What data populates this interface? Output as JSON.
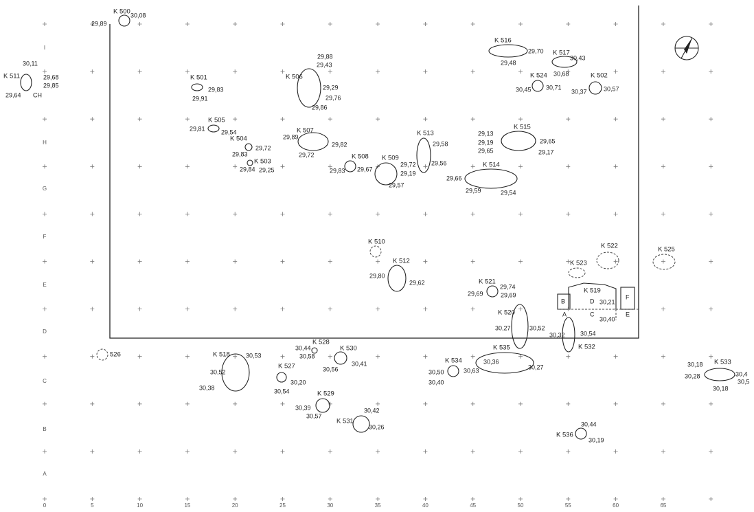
{
  "site_plan": {
    "features": [
      {
        "label": "K 500",
        "elevations": [
          "29,89",
          "30,08"
        ]
      },
      {
        "label": "K 501",
        "elevations": [
          "29,83",
          "29,91"
        ]
      },
      {
        "label": "K 506",
        "elevations": [
          "29,88",
          "29,43",
          "29,29",
          "29,76",
          "29,86"
        ]
      },
      {
        "label": "K 505",
        "elevations": [
          "29,81",
          "29,54"
        ]
      },
      {
        "label": "K 504",
        "elevations": [
          "29,72",
          "29,83"
        ]
      },
      {
        "label": "K 503",
        "elevations": [
          "29,84",
          "29,25"
        ]
      },
      {
        "label": "K 507",
        "elevations": [
          "29,89",
          "29,82",
          "29,72"
        ]
      },
      {
        "label": "K 508",
        "elevations": [
          "29,83",
          "29,67"
        ]
      },
      {
        "label": "K 509",
        "elevations": [
          "29,72",
          "29,19",
          "29,57"
        ]
      },
      {
        "label": "K 513",
        "elevations": [
          "29,58",
          "29,56"
        ]
      },
      {
        "label": "K 514",
        "elevations": [
          "29,66",
          "29,59",
          "29,54"
        ]
      },
      {
        "label": "K 515",
        "elevations": [
          "29,13",
          "29,19",
          "29,65",
          "29,65",
          "29,17"
        ]
      },
      {
        "label": "K 516",
        "elevations": [
          "29,70",
          "29,48"
        ]
      },
      {
        "label": "K 517",
        "elevations": [
          "30,43",
          "30,68"
        ]
      },
      {
        "label": "K 524",
        "elevations": [
          "30,45",
          "30,71"
        ]
      },
      {
        "label": "K 502",
        "elevations": [
          "30,37",
          "30,57"
        ]
      },
      {
        "label": "K 511",
        "elevations": [
          "30,11",
          "29,68",
          "29,85",
          "29,64"
        ]
      },
      {
        "label": "K 510",
        "elevations": []
      },
      {
        "label": "K 512",
        "elevations": [
          "29,80",
          "29,62"
        ]
      },
      {
        "label": "K 521",
        "elevations": [
          "29,74",
          "29,69",
          "29,69"
        ]
      },
      {
        "label": "K 520",
        "elevations": [
          "30,27",
          "30,52"
        ]
      },
      {
        "label": "K 519",
        "elevations": [
          "30,21",
          "30,40"
        ]
      },
      {
        "label": "K 522",
        "elevations": []
      },
      {
        "label": "K 523",
        "elevations": []
      },
      {
        "label": "K 525",
        "elevations": []
      },
      {
        "label": "K 532",
        "elevations": [
          "30,32",
          "30,54"
        ]
      },
      {
        "label": "526",
        "elevations": []
      },
      {
        "label": "K 518",
        "elevations": [
          "30,53",
          "30,52",
          "30,38"
        ]
      },
      {
        "label": "K 527",
        "elevations": [
          "30,20",
          "30,54"
        ]
      },
      {
        "label": "K 528",
        "elevations": [
          "30,44",
          "30,58"
        ]
      },
      {
        "label": "K 530",
        "elevations": [
          "30,56",
          "30,41"
        ]
      },
      {
        "label": "K 529",
        "elevations": [
          "30,39",
          "30,57"
        ]
      },
      {
        "label": "K 531",
        "elevations": [
          "30,42",
          "30,26"
        ]
      },
      {
        "label": "K 534",
        "elevations": [
          "30,50",
          "30,40",
          "30,63"
        ]
      },
      {
        "label": "K 535",
        "elevations": [
          "30,36",
          "30,27"
        ]
      },
      {
        "label": "K 536",
        "elevations": [
          "30,44",
          "30,19"
        ]
      },
      {
        "label": "K 533",
        "elevations": [
          "30,18",
          "30,28",
          "30,18",
          "30,4",
          "30,5"
        ]
      }
    ],
    "annotations": [
      "CH"
    ],
    "sections": [
      "B",
      "D",
      "F",
      "A",
      "C",
      "E"
    ],
    "axis_x": [
      0,
      5,
      10,
      15,
      20,
      25,
      30,
      35,
      40,
      45,
      50,
      55,
      60,
      65
    ],
    "axis_y": [
      "I",
      "H",
      "G",
      "F",
      "E",
      "D",
      "C",
      "B",
      "A"
    ]
  }
}
